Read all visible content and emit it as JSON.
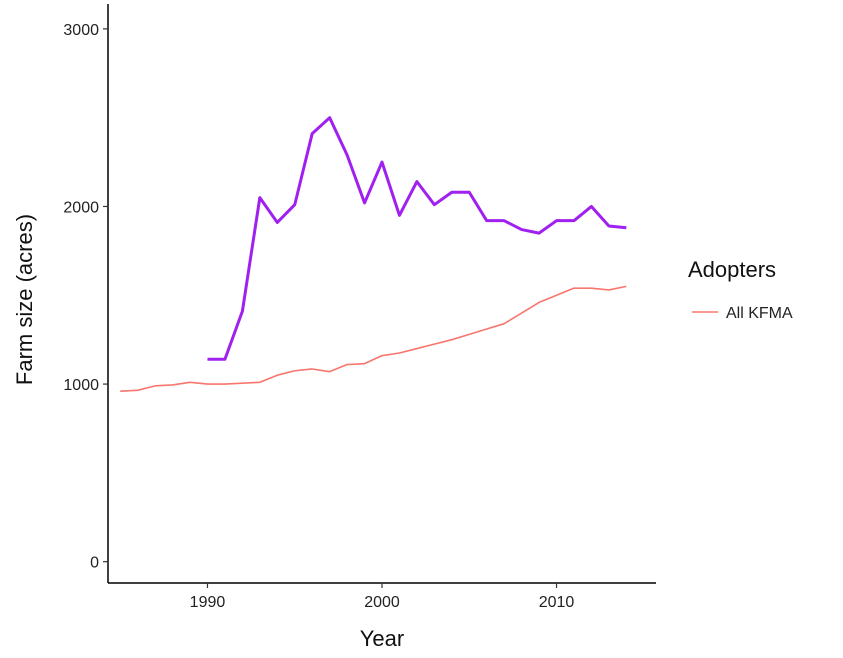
{
  "chart_data": {
    "type": "line",
    "xlabel": "Year",
    "ylabel": "Farm size (acres)",
    "xlim": [
      1984.3,
      2015.7
    ],
    "ylim": [
      -120,
      3140
    ],
    "x_ticks": [
      1990,
      2000,
      2010
    ],
    "y_ticks": [
      0,
      1000,
      2000,
      3000
    ],
    "grid": false,
    "legend": {
      "title": "Adopters",
      "placement": "right"
    },
    "series": [
      {
        "name": "All KFMA",
        "color": "#F8766D",
        "x": [
          1985,
          1986,
          1987,
          1988,
          1989,
          1990,
          1991,
          1992,
          1993,
          1994,
          1995,
          1996,
          1997,
          1998,
          1999,
          2000,
          2001,
          2002,
          2003,
          2004,
          2005,
          2006,
          2007,
          2008,
          2009,
          2010,
          2011,
          2012,
          2013,
          2014
        ],
        "values": [
          960,
          965,
          990,
          995,
          1010,
          1000,
          1000,
          1005,
          1010,
          1050,
          1075,
          1085,
          1070,
          1110,
          1115,
          1160,
          1175,
          1200,
          1225,
          1250,
          1280,
          1310,
          1340,
          1400,
          1460,
          1500,
          1540,
          1540,
          1530,
          1550
        ]
      },
      {
        "name": "",
        "color": "#A020F0",
        "x": [
          1990,
          1991,
          1992,
          1993,
          1994,
          1995,
          1996,
          1997,
          1998,
          1999,
          2000,
          2001,
          2002,
          2003,
          2004,
          2005,
          2006,
          2007,
          2008,
          2009,
          2010,
          2011,
          2012,
          2013,
          2014
        ],
        "values": [
          1140,
          1140,
          1410,
          2050,
          1910,
          2010,
          2410,
          2500,
          2290,
          2020,
          2250,
          1950,
          2140,
          2010,
          2080,
          2080,
          1920,
          1920,
          1870,
          1850,
          1920,
          1920,
          2000,
          1890,
          1880
        ]
      }
    ]
  }
}
